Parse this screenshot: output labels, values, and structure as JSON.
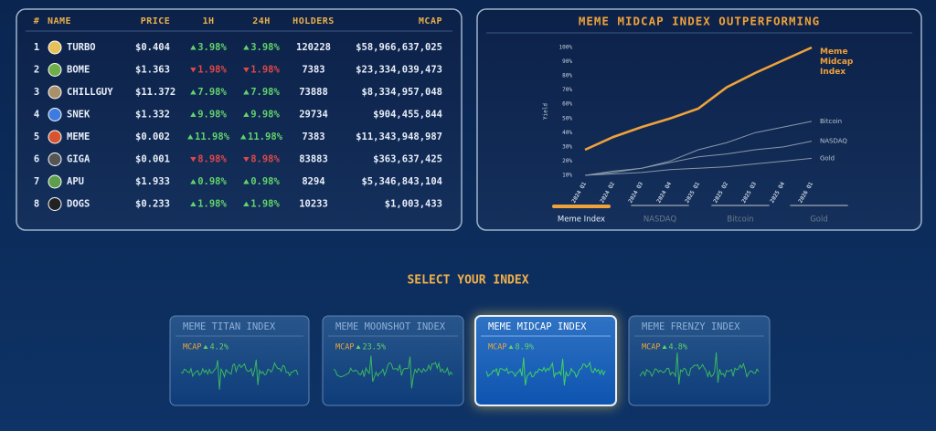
{
  "table": {
    "headers": [
      "#",
      "NAME",
      "PRICE",
      "1H",
      "24H",
      "HOLDERS",
      "MCAP"
    ],
    "rows": [
      {
        "rank": 1,
        "name": "TURBO",
        "price": "$0.404",
        "h1": {
          "text": "3.98%",
          "dir": "up"
        },
        "h24": {
          "text": "3.98%",
          "dir": "up"
        },
        "holders": 120228,
        "mcap": "$58,966,637,025",
        "icon": "#e6c15a"
      },
      {
        "rank": 2,
        "name": "BOME",
        "price": "$1.363",
        "h1": {
          "text": "1.98%",
          "dir": "down"
        },
        "h24": {
          "text": "1.98%",
          "dir": "down"
        },
        "holders": 7383,
        "mcap": "$23,334,039,473",
        "icon": "#6fae4a"
      },
      {
        "rank": 3,
        "name": "CHILLGUY",
        "price": "$11.372",
        "h1": {
          "text": "7.98%",
          "dir": "up"
        },
        "h24": {
          "text": "7.98%",
          "dir": "up"
        },
        "holders": 73888,
        "mcap": "$8,334,957,048",
        "icon": "#a9906a"
      },
      {
        "rank": 4,
        "name": "SNEK",
        "price": "$1.332",
        "h1": {
          "text": "9.98%",
          "dir": "up"
        },
        "h24": {
          "text": "9.98%",
          "dir": "up"
        },
        "holders": 29734,
        "mcap": "$904,455,844",
        "icon": "#3d7be0"
      },
      {
        "rank": 5,
        "name": "MEME",
        "price": "$0.002",
        "h1": {
          "text": "11.98%",
          "dir": "up"
        },
        "h24": {
          "text": "11.98%",
          "dir": "up"
        },
        "holders": 7383,
        "mcap": "$11,343,948,987",
        "icon": "#d9532f"
      },
      {
        "rank": 6,
        "name": "GIGA",
        "price": "$0.001",
        "h1": {
          "text": "8.98%",
          "dir": "down"
        },
        "h24": {
          "text": "8.98%",
          "dir": "down"
        },
        "holders": 83883,
        "mcap": "$363,637,425",
        "icon": "#555555"
      },
      {
        "rank": 7,
        "name": "APU",
        "price": "$1.933",
        "h1": {
          "text": "0.98%",
          "dir": "up"
        },
        "h24": {
          "text": "0.98%",
          "dir": "up"
        },
        "holders": 8294,
        "mcap": "$5,346,843,104",
        "icon": "#5c9e4c"
      },
      {
        "rank": 8,
        "name": "DOGS",
        "price": "$0.233",
        "h1": {
          "text": "1.98%",
          "dir": "up"
        },
        "h24": {
          "text": "1.98%",
          "dir": "up"
        },
        "holders": 10233,
        "mcap": "$1,003,433",
        "icon": "#222222"
      }
    ]
  },
  "chart": {
    "type": "line",
    "title": "MEME MIDCAP INDEX OUTPERFORMING",
    "ylabel": "Yield",
    "categories": [
      "2024 Q1",
      "2024 Q2",
      "2024 Q3",
      "2024 Q4",
      "2025 Q1",
      "2025 Q2",
      "2025 Q3",
      "2025 Q4",
      "2026 Q1"
    ],
    "ylim": [
      10,
      100
    ],
    "yticks": [
      {
        "value": 10,
        "label": "10%"
      },
      {
        "value": 20,
        "label": "20%"
      },
      {
        "value": 30,
        "label": "30%"
      },
      {
        "value": 40,
        "label": "40%"
      },
      {
        "value": 50,
        "label": "50%"
      },
      {
        "value": 60,
        "label": "60%"
      },
      {
        "value": 70,
        "label": "70%"
      },
      {
        "value": 80,
        "label": "80%"
      },
      {
        "value": 90,
        "label": "90%"
      },
      {
        "value": 100,
        "label": "100%"
      }
    ],
    "series": [
      {
        "name": "Meme Index",
        "end_label": "Meme Midcap Index",
        "color": "#f0a23a",
        "values": [
          28,
          37,
          44,
          50,
          57,
          72,
          82,
          91,
          100
        ]
      },
      {
        "name": "NASDAQ",
        "end_label": "NASDAQ",
        "color": "#8a97a6",
        "values": [
          10,
          13,
          15,
          19,
          23,
          25,
          28,
          30,
          34
        ]
      },
      {
        "name": "Bitcoin",
        "end_label": "Bitcoin",
        "color": "#8a97a6",
        "values": [
          10,
          12,
          15,
          20,
          28,
          33,
          40,
          44,
          48
        ]
      },
      {
        "name": "Gold",
        "end_label": "Gold",
        "color": "#8a97a6",
        "values": [
          10,
          11,
          12,
          14,
          15,
          16,
          18,
          20,
          22
        ]
      }
    ]
  },
  "selector": {
    "title": "SELECT YOUR INDEX",
    "cards": [
      {
        "name": "MEME TITAN INDEX",
        "metric": "MCAP",
        "change": "4.2%",
        "selected": false
      },
      {
        "name": "MEME MOONSHOT INDEX",
        "metric": "MCAP",
        "change": "23.5%",
        "selected": false
      },
      {
        "name": "MEME MIDCAP INDEX",
        "metric": "MCAP",
        "change": "8.9%",
        "selected": true
      },
      {
        "name": "MEME FRENZY INDEX",
        "metric": "MCAP",
        "change": "4.8%",
        "selected": false
      }
    ]
  }
}
